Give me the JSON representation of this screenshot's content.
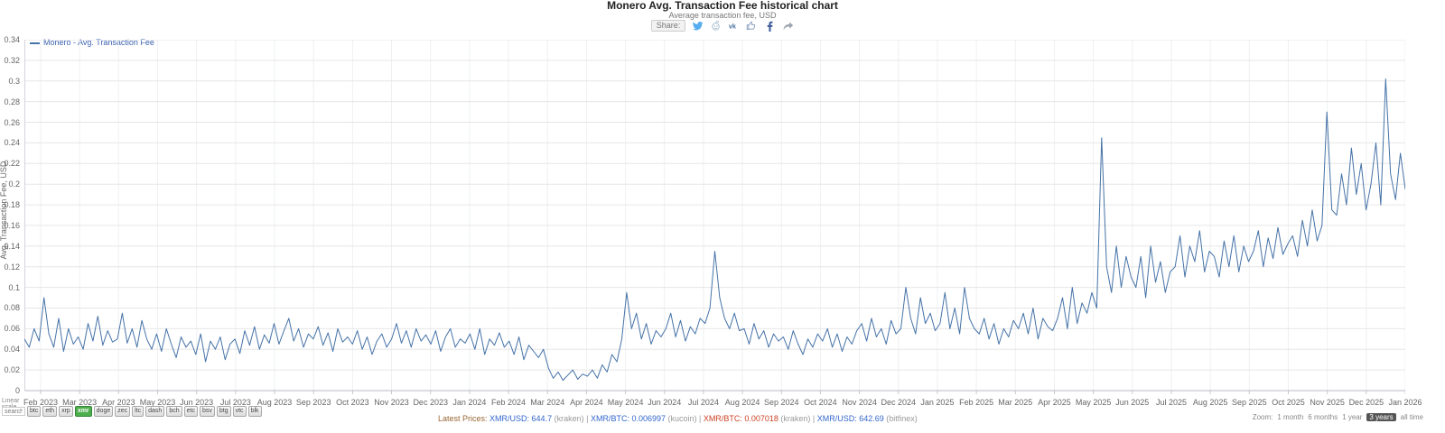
{
  "header": {
    "title": "Monero Avg. Transaction Fee historical chart",
    "subtitle": "Average transaction fee, USD",
    "share_label": "Share:",
    "share_icons": [
      "twitter-icon",
      "reddit-icon",
      "vk-icon",
      "like-icon",
      "facebook-icon",
      "share-icon"
    ]
  },
  "legend": {
    "label": "Monero - Avg. Transaction Fee",
    "color": "#4572a7"
  },
  "chart_data": {
    "type": "line",
    "title": "Monero Avg. Transaction Fee historical chart",
    "subtitle": "Average transaction fee, USD",
    "xlabel": "",
    "ylabel": "Avg. Transaction Fee, USD",
    "ylim": [
      0,
      0.34
    ],
    "ytick_step": 0.02,
    "grid": true,
    "legend_position": "top-left",
    "x_months": [
      "Feb 2023",
      "Mar 2023",
      "Apr 2023",
      "May 2023",
      "Jun 2023",
      "Jul 2023",
      "Aug 2023",
      "Sep 2023",
      "Oct 2023",
      "Nov 2023",
      "Dec 2023",
      "Jan 2024",
      "Feb 2024",
      "Mar 2024",
      "Apr 2024",
      "May 2024",
      "Jun 2024",
      "Jul 2024",
      "Aug 2024",
      "Sep 2024",
      "Oct 2024",
      "Nov 2024",
      "Dec 2024",
      "Jan 2025",
      "Feb 2025",
      "Mar 2025",
      "Apr 2025",
      "May 2025",
      "Jun 2025",
      "Jul 2025",
      "Aug 2025",
      "Sep 2025",
      "Oct 2025",
      "Nov 2025",
      "Dec 2025",
      "Jan 2026"
    ],
    "series": [
      {
        "name": "Monero - Avg. Transaction Fee",
        "color": "#4572a7",
        "values": [
          0.05,
          0.042,
          0.06,
          0.048,
          0.09,
          0.055,
          0.042,
          0.07,
          0.038,
          0.06,
          0.045,
          0.052,
          0.04,
          0.065,
          0.048,
          0.072,
          0.044,
          0.058,
          0.047,
          0.05,
          0.075,
          0.046,
          0.06,
          0.042,
          0.068,
          0.05,
          0.04,
          0.055,
          0.038,
          0.06,
          0.045,
          0.032,
          0.052,
          0.042,
          0.048,
          0.035,
          0.055,
          0.028,
          0.048,
          0.04,
          0.052,
          0.03,
          0.045,
          0.05,
          0.036,
          0.058,
          0.044,
          0.062,
          0.04,
          0.054,
          0.046,
          0.065,
          0.045,
          0.058,
          0.07,
          0.048,
          0.06,
          0.042,
          0.055,
          0.05,
          0.062,
          0.044,
          0.056,
          0.038,
          0.06,
          0.047,
          0.052,
          0.045,
          0.058,
          0.04,
          0.052,
          0.035,
          0.048,
          0.055,
          0.042,
          0.05,
          0.065,
          0.046,
          0.058,
          0.042,
          0.06,
          0.048,
          0.054,
          0.045,
          0.058,
          0.038,
          0.052,
          0.06,
          0.042,
          0.05,
          0.046,
          0.055,
          0.04,
          0.06,
          0.035,
          0.05,
          0.044,
          0.056,
          0.042,
          0.048,
          0.035,
          0.052,
          0.03,
          0.044,
          0.038,
          0.032,
          0.04,
          0.022,
          0.012,
          0.018,
          0.01,
          0.015,
          0.02,
          0.011,
          0.016,
          0.014,
          0.02,
          0.012,
          0.025,
          0.018,
          0.035,
          0.028,
          0.05,
          0.095,
          0.06,
          0.075,
          0.05,
          0.065,
          0.045,
          0.058,
          0.052,
          0.06,
          0.075,
          0.052,
          0.068,
          0.048,
          0.062,
          0.055,
          0.07,
          0.065,
          0.08,
          0.135,
          0.09,
          0.07,
          0.06,
          0.075,
          0.058,
          0.06,
          0.045,
          0.065,
          0.05,
          0.058,
          0.042,
          0.055,
          0.048,
          0.052,
          0.04,
          0.058,
          0.045,
          0.035,
          0.05,
          0.042,
          0.055,
          0.048,
          0.06,
          0.042,
          0.055,
          0.038,
          0.052,
          0.045,
          0.058,
          0.065,
          0.048,
          0.07,
          0.052,
          0.06,
          0.045,
          0.068,
          0.055,
          0.06,
          0.1,
          0.07,
          0.055,
          0.09,
          0.065,
          0.075,
          0.058,
          0.065,
          0.095,
          0.06,
          0.08,
          0.055,
          0.1,
          0.07,
          0.06,
          0.055,
          0.07,
          0.05,
          0.065,
          0.045,
          0.06,
          0.052,
          0.068,
          0.06,
          0.075,
          0.055,
          0.08,
          0.05,
          0.07,
          0.062,
          0.058,
          0.07,
          0.09,
          0.06,
          0.1,
          0.065,
          0.085,
          0.075,
          0.095,
          0.08,
          0.245,
          0.12,
          0.095,
          0.14,
          0.1,
          0.13,
          0.11,
          0.1,
          0.13,
          0.09,
          0.14,
          0.105,
          0.125,
          0.095,
          0.115,
          0.12,
          0.15,
          0.11,
          0.14,
          0.125,
          0.155,
          0.115,
          0.135,
          0.13,
          0.11,
          0.145,
          0.12,
          0.15,
          0.115,
          0.14,
          0.125,
          0.135,
          0.155,
          0.12,
          0.148,
          0.128,
          0.158,
          0.132,
          0.142,
          0.15,
          0.13,
          0.165,
          0.14,
          0.175,
          0.145,
          0.16,
          0.27,
          0.175,
          0.17,
          0.21,
          0.18,
          0.235,
          0.19,
          0.22,
          0.175,
          0.2,
          0.24,
          0.18,
          0.302,
          0.21,
          0.185,
          0.23,
          0.195
        ]
      }
    ]
  },
  "footer": {
    "scale_label": "Linear scale",
    "search_placeholder": "search",
    "coins": [
      {
        "label": "btc",
        "active": false
      },
      {
        "label": "eth",
        "active": false
      },
      {
        "label": "xrp",
        "active": false
      },
      {
        "label": "xmr",
        "active": true
      },
      {
        "label": "doge",
        "active": false
      },
      {
        "label": "zec",
        "active": false
      },
      {
        "label": "ltc",
        "active": false
      },
      {
        "label": "dash",
        "active": false
      },
      {
        "label": "bch",
        "active": false
      },
      {
        "label": "etc",
        "active": false
      },
      {
        "label": "bsv",
        "active": false
      },
      {
        "label": "btg",
        "active": false
      },
      {
        "label": "vtc",
        "active": false
      },
      {
        "label": "blk",
        "active": false
      }
    ],
    "zoom": {
      "label": "Zoom:",
      "options": [
        {
          "label": "1 month",
          "active": false
        },
        {
          "label": "6 months",
          "active": false
        },
        {
          "label": "1 year",
          "active": false
        },
        {
          "label": "3 years",
          "active": true
        },
        {
          "label": "all time",
          "active": false
        }
      ]
    },
    "prices": {
      "label": "Latest Prices:",
      "items": [
        {
          "text": "XMR/USD: 644.7",
          "source": "(kraken)",
          "color": "#3366cc"
        },
        {
          "text": "XMR/BTC: 0.006997",
          "source": "(kucoin)",
          "color": "#3366cc"
        },
        {
          "text": "XMR/BTC: 0.007018",
          "source": "(kraken)",
          "color": "#cc4125"
        },
        {
          "text": "XMR/USD: 642.69",
          "source": "(bitfinex)",
          "color": "#3366cc"
        }
      ]
    }
  }
}
